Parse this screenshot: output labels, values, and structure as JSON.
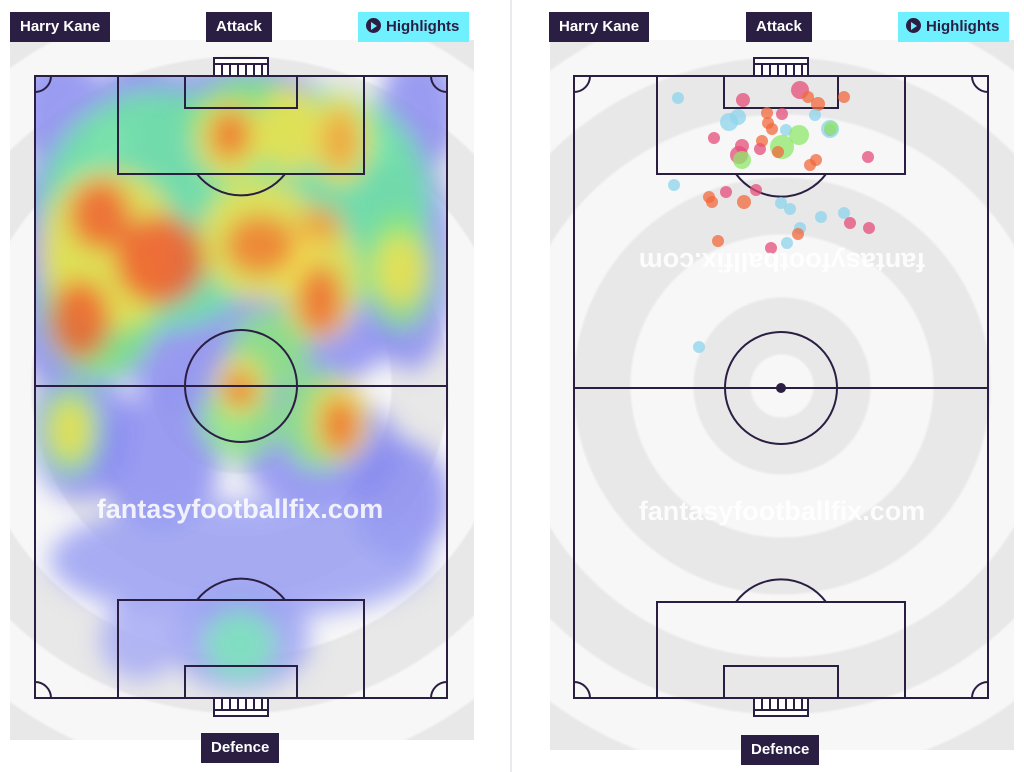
{
  "panels": {
    "heatmap": {
      "player_label": "Harry Kane",
      "attack_label": "Attack",
      "defence_label": "Defence",
      "highlights_label": "Highlights",
      "watermark": "fantasyfootballfix.com",
      "icons": {
        "highlights": "play-circle-icon"
      }
    },
    "shots": {
      "player_label": "Harry Kane",
      "attack_label": "Attack",
      "defence_label": "Defence",
      "highlights_label": "Highlights",
      "watermark_top": "fantasyfootballfix.com",
      "watermark_bottom": "fantasyfootballfix.com",
      "icons": {
        "highlights": "play-circle-icon"
      }
    }
  },
  "colors": {
    "pitch_line": "#2b1e43",
    "label_bg": "#2b1e43",
    "highlight_bg": "#6ff0ff",
    "shot_goal": "#8ee86a",
    "shot_on_target": "#8ed4ee",
    "shot_off_target": "#f26a3c",
    "shot_blocked": "#e54d7a"
  }
}
